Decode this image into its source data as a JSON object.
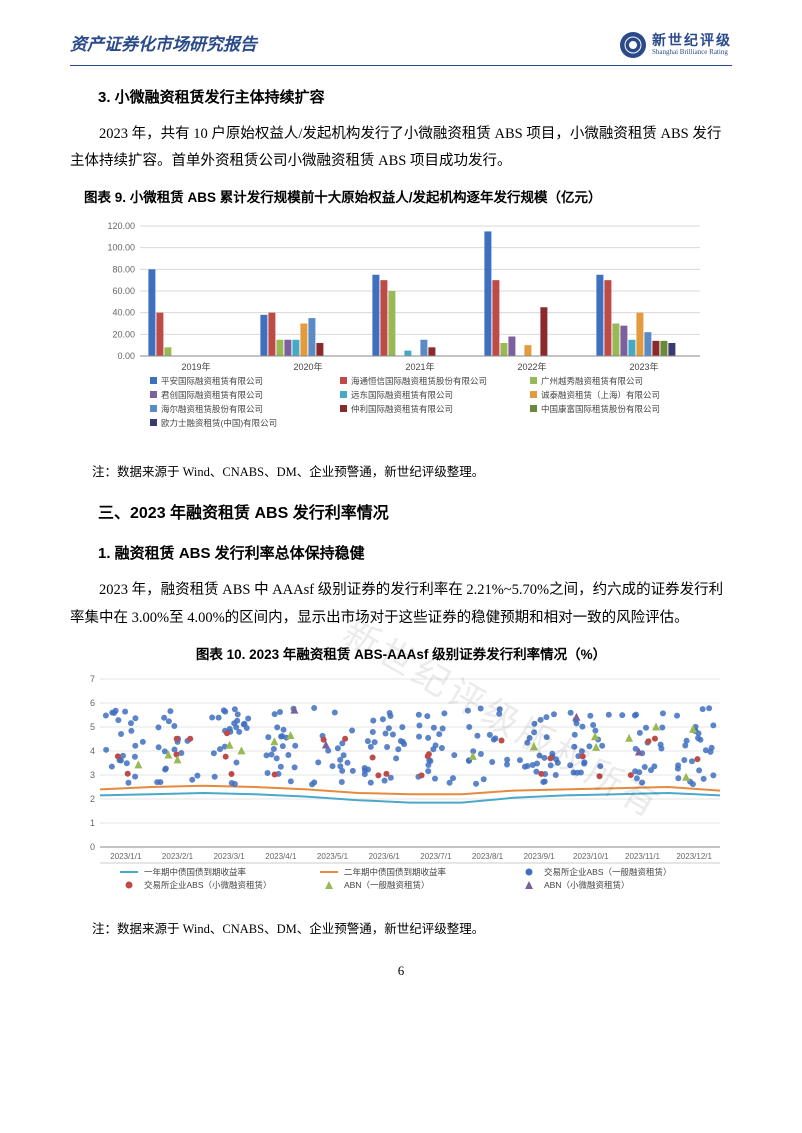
{
  "header": {
    "title": "资产证券化市场研究报告",
    "brand_cn": "新世纪评级",
    "brand_en": "Shanghai Brilliance Rating"
  },
  "section3": {
    "heading": "3.  小微融资租赁发行主体持续扩容",
    "para": "2023 年，共有 10 户原始权益人/发起机构发行了小微融资租赁 ABS 项目，小微融资租赁 ABS 发行主体持续扩容。首单外资租赁公司小微融资租赁 ABS 项目成功发行。"
  },
  "chart9": {
    "title": "图表 9.  小微租赁 ABS 累计发行规模前十大原始权益人/发起机构逐年发行规模（亿元）",
    "type": "grouped-bar",
    "categories": [
      "2019年",
      "2020年",
      "2021年",
      "2022年",
      "2023年"
    ],
    "ylim": [
      0,
      120
    ],
    "ytick_step": 20,
    "yticks": [
      "0.00",
      "20.00",
      "40.00",
      "60.00",
      "80.00",
      "100.00",
      "120.00"
    ],
    "background_color": "#ffffff",
    "grid_color": "#d9d9d9",
    "series": [
      {
        "name": "平安国际融资租赁有限公司",
        "color": "#3f6fbf",
        "values": [
          80,
          38,
          75,
          115,
          75
        ]
      },
      {
        "name": "海通恒信国际融资租赁股份有限公司",
        "color": "#be4b48",
        "values": [
          40,
          40,
          70,
          70,
          70
        ]
      },
      {
        "name": "广州越秀融资租赁有限公司",
        "color": "#98b954",
        "values": [
          8,
          15,
          60,
          12,
          30
        ]
      },
      {
        "name": "君创国际融资租赁有限公司",
        "color": "#7c609e",
        "values": [
          0,
          15,
          0,
          18,
          28
        ]
      },
      {
        "name": "远东国际融资租赁有限公司",
        "color": "#46aac5",
        "values": [
          0,
          15,
          5,
          0,
          15
        ]
      },
      {
        "name": "诚泰融资租赁（上海）有限公司",
        "color": "#e49b3e",
        "values": [
          0,
          30,
          0,
          10,
          40
        ]
      },
      {
        "name": "海尔融资租赁股份有限公司",
        "color": "#5b8bc6",
        "values": [
          0,
          35,
          15,
          0,
          22
        ]
      },
      {
        "name": "仲利国际融资租赁有限公司",
        "color": "#8b2a2a",
        "values": [
          0,
          12,
          8,
          45,
          14
        ]
      },
      {
        "name": "中国康富国际租赁股份有限公司",
        "color": "#6a8a3a",
        "values": [
          0,
          0,
          0,
          0,
          14
        ]
      },
      {
        "name": "欧力士融资租赁(中国)有限公司",
        "color": "#3a3a70",
        "values": [
          0,
          0,
          0,
          0,
          12
        ]
      }
    ],
    "note": "注：数据来源于 Wind、CNABS、DM、企业预警通，新世纪评级整理。"
  },
  "section_main3": {
    "heading": "三、2023 年融资租赁 ABS 发行利率情况"
  },
  "section3_1": {
    "heading": "1.  融资租赁 ABS 发行利率总体保持稳健",
    "para": "2023 年，融资租赁 ABS 中 AAAsf 级别证券的发行利率在 2.21%~5.70%之间，约六成的证券发行利率集中在 3.00%至 4.00%的区间内，显示出市场对于这些证券的稳健预期和相对一致的风险评估。"
  },
  "chart10": {
    "title": "图表 10.  2023 年融资租赁 ABS-AAAsf 级别证券发行利率情况（%）",
    "type": "scatter-line",
    "xlabels": [
      "2023/1/1",
      "2023/2/1",
      "2023/3/1",
      "2023/4/1",
      "2023/5/1",
      "2023/6/1",
      "2023/7/1",
      "2023/8/1",
      "2023/9/1",
      "2023/10/1",
      "2023/11/1",
      "2023/12/1"
    ],
    "ylim": [
      0,
      7
    ],
    "ytick_step": 1,
    "yticks": [
      "0",
      "1",
      "2",
      "3",
      "4",
      "5",
      "6",
      "7"
    ],
    "background_color": "#ffffff",
    "grid_color": "#e5e5e5",
    "line_series": [
      {
        "name": "一年期中债国债到期收益率",
        "color": "#4ba8c9",
        "width": 2,
        "values": [
          2.15,
          2.2,
          2.25,
          2.2,
          2.1,
          1.95,
          1.85,
          1.85,
          2.05,
          2.15,
          2.2,
          2.25,
          2.15
        ]
      },
      {
        "name": "二年期中债国债到期收益率",
        "color": "#e58a3e",
        "width": 2,
        "values": [
          2.4,
          2.5,
          2.55,
          2.5,
          2.4,
          2.25,
          2.2,
          2.2,
          2.35,
          2.4,
          2.45,
          2.5,
          2.35
        ]
      }
    ],
    "scatter_series": [
      {
        "name": "交易所企业ABS（一般融资租赁）",
        "color": "#3f6fbf",
        "marker": "circle",
        "size": 4
      },
      {
        "name": "交易所企业ABS（小微融资租赁）",
        "color": "#be4b48",
        "marker": "circle",
        "size": 4
      },
      {
        "name": "ABN（一般融资租赁）",
        "color": "#98b954",
        "marker": "triangle",
        "size": 5
      },
      {
        "name": "ABN（小微融资租赁）",
        "color": "#7c609e",
        "marker": "triangle",
        "size": 5
      }
    ],
    "note": "注：数据来源于 Wind、CNABS、DM、企业预警通，新世纪评级整理。"
  },
  "page_number": "6",
  "watermark": "新世纪评级版权所有"
}
